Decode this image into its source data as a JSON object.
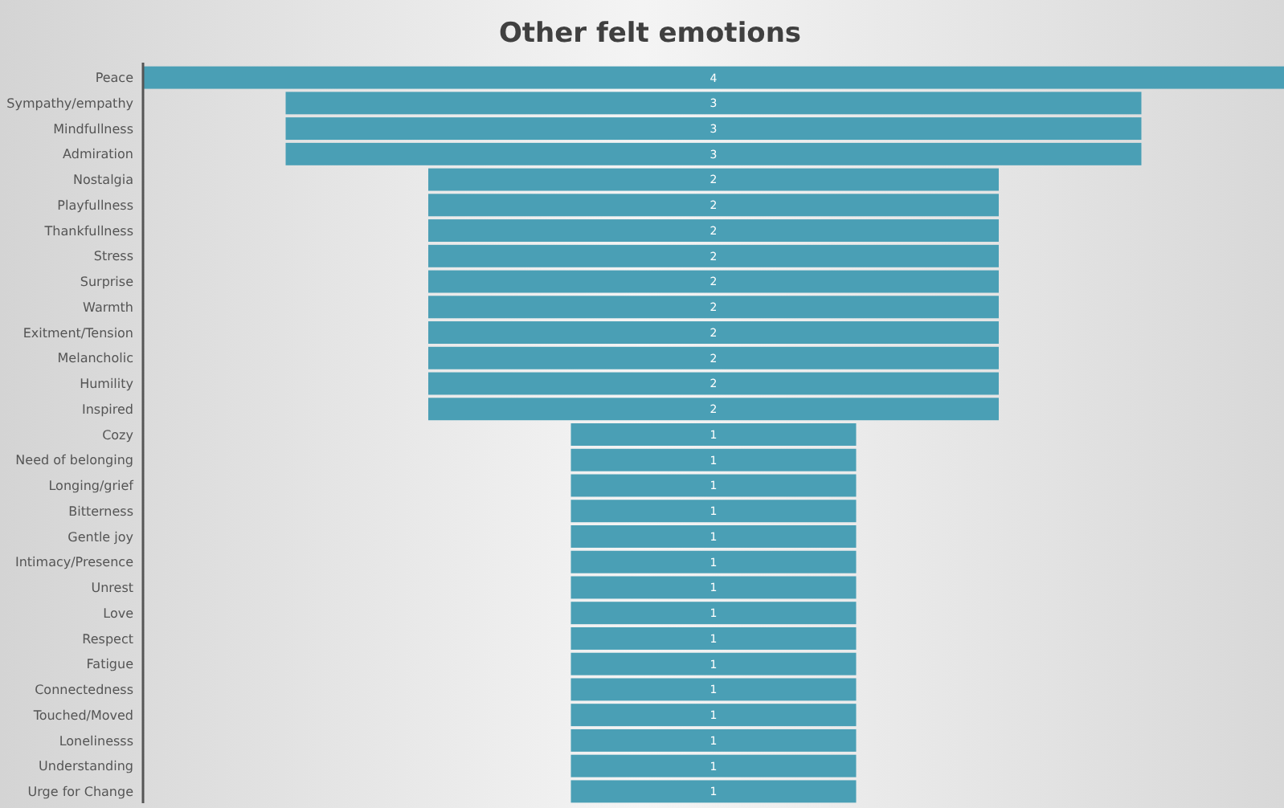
{
  "chart_data": {
    "type": "other",
    "title": "Other felt emotions",
    "categories": [
      "Peace",
      "Sympathy/empathy",
      "Mindfullness",
      "Admiration",
      "Nostalgia",
      "Playfullness",
      "Thankfullness",
      "Stress",
      "Surprise",
      "Warmth",
      "Exitment/Tension",
      "Melancholic",
      "Humility",
      "Inspired",
      "Cozy",
      "Need of belonging",
      "Longing/grief",
      "Bitterness",
      "Gentle joy",
      "Intimacy/Presence",
      "Unrest",
      "Love",
      "Respect",
      "Fatigue",
      "Connectedness",
      "Touched/Moved",
      "Lonelinesss",
      "Understanding",
      "Urge for Change"
    ],
    "values": [
      4,
      3,
      3,
      3,
      2,
      2,
      2,
      2,
      2,
      2,
      2,
      2,
      2,
      2,
      1,
      1,
      1,
      1,
      1,
      1,
      1,
      1,
      1,
      1,
      1,
      1,
      1,
      1,
      1
    ],
    "color": "#4a9fb5",
    "data_labels": true
  }
}
